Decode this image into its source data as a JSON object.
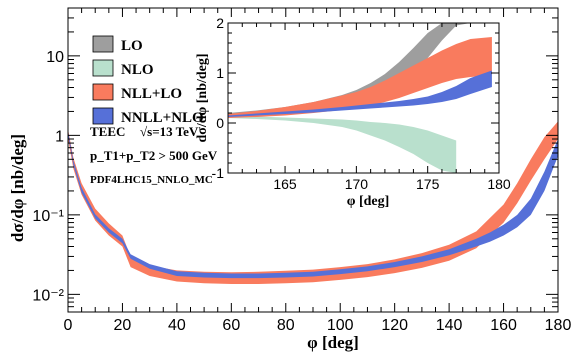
{
  "colors": {
    "lo": "#9e9e9e",
    "nlo": "#b9e0cd",
    "nll_lo": "#f97b5e",
    "nnll_nlo": "#5670d8"
  },
  "legend": [
    {
      "key": "lo",
      "label": "LO"
    },
    {
      "key": "nlo",
      "label": "NLO"
    },
    {
      "key": "nll_lo",
      "label": "NLL+LO"
    },
    {
      "key": "nnll_nlo",
      "label": "NNLL+NLO"
    }
  ],
  "annotations": {
    "line1_a": "TEEC",
    "line1_b": "√s=13 TeV",
    "line2": "p_T1+p_T2 > 500 GeV",
    "line3": "PDF4LHC15_NNLO_MC"
  },
  "chart_data": [
    {
      "type": "area",
      "name": "main",
      "xlabel": "φ [deg]",
      "ylabel": "dσ/dφ  [nb/deg]",
      "xlim": [
        0,
        180
      ],
      "ylim": [
        0.006,
        40
      ],
      "yscale": "log",
      "xticks": [
        0,
        20,
        40,
        60,
        80,
        100,
        120,
        140,
        160,
        180
      ],
      "yticks": [
        {
          "value": 0.01,
          "label": "10⁻²"
        },
        {
          "value": 0.1,
          "label": "10⁻¹"
        },
        {
          "value": 1,
          "label": "1"
        },
        {
          "value": 10,
          "label": "10"
        }
      ],
      "series": [
        {
          "key": "nll_lo",
          "x": [
            0,
            2,
            5,
            10,
            15,
            20,
            23,
            30,
            40,
            50,
            60,
            70,
            80,
            90,
            100,
            110,
            120,
            130,
            140,
            150,
            160,
            165,
            170,
            175,
            180
          ],
          "lower": [
            0.9,
            0.38,
            0.18,
            0.085,
            0.055,
            0.04,
            0.022,
            0.017,
            0.0145,
            0.0138,
            0.0135,
            0.0135,
            0.0138,
            0.0142,
            0.0152,
            0.0165,
            0.0185,
            0.0215,
            0.0265,
            0.038,
            0.08,
            0.14,
            0.27,
            0.5,
            0.9
          ],
          "upper": [
            1.2,
            0.52,
            0.25,
            0.12,
            0.078,
            0.055,
            0.03,
            0.023,
            0.02,
            0.0192,
            0.019,
            0.0192,
            0.0198,
            0.0205,
            0.022,
            0.024,
            0.0275,
            0.033,
            0.042,
            0.062,
            0.135,
            0.25,
            0.5,
            0.95,
            1.5
          ]
        },
        {
          "key": "nnll_nlo",
          "x": [
            0,
            2,
            5,
            10,
            15,
            20,
            23,
            30,
            40,
            50,
            60,
            70,
            80,
            90,
            100,
            110,
            120,
            130,
            140,
            150,
            155,
            160,
            165,
            170,
            175,
            180
          ],
          "lower": [
            1.0,
            0.42,
            0.19,
            0.09,
            0.06,
            0.044,
            0.028,
            0.021,
            0.017,
            0.0163,
            0.016,
            0.016,
            0.0163,
            0.0168,
            0.018,
            0.0195,
            0.022,
            0.0255,
            0.031,
            0.04,
            0.046,
            0.055,
            0.07,
            0.1,
            0.2,
            0.55
          ],
          "upper": [
            1.15,
            0.48,
            0.22,
            0.102,
            0.068,
            0.05,
            0.032,
            0.024,
            0.0195,
            0.0187,
            0.0183,
            0.0183,
            0.0187,
            0.0193,
            0.0207,
            0.0225,
            0.0255,
            0.03,
            0.037,
            0.05,
            0.06,
            0.075,
            0.1,
            0.16,
            0.35,
            0.9
          ]
        }
      ]
    },
    {
      "type": "area",
      "name": "inset",
      "xlabel": "φ [deg]",
      "ylabel": "dσ/dφ  [nb/deg]",
      "xlim": [
        161,
        180
      ],
      "ylim": [
        -1,
        2
      ],
      "xticks": [
        165,
        170,
        175,
        180
      ],
      "yticks": [
        -1,
        0,
        1,
        2
      ],
      "series": [
        {
          "key": "nlo",
          "x": [
            161,
            163,
            165,
            167,
            169,
            170,
            171,
            172,
            173,
            174,
            175,
            176,
            177
          ],
          "lower": [
            0.1,
            0.08,
            0.05,
            0.0,
            -0.08,
            -0.15,
            -0.25,
            -0.35,
            -0.48,
            -0.62,
            -0.8,
            -0.95,
            -1.0
          ],
          "upper": [
            0.15,
            0.13,
            0.11,
            0.09,
            0.07,
            0.05,
            0.02,
            0.0,
            -0.03,
            -0.08,
            -0.15,
            -0.25,
            -0.35
          ]
        },
        {
          "key": "lo",
          "x": [
            161,
            163,
            165,
            167,
            169,
            170,
            171,
            172,
            173,
            174,
            175,
            176,
            177,
            178
          ],
          "lower": [
            0.15,
            0.18,
            0.22,
            0.28,
            0.36,
            0.42,
            0.5,
            0.62,
            0.78,
            1.0,
            1.3,
            1.65,
            1.95,
            2.0
          ],
          "upper": [
            0.2,
            0.25,
            0.32,
            0.42,
            0.56,
            0.66,
            0.8,
            0.98,
            1.22,
            1.5,
            1.8,
            2.0,
            2.0,
            2.0
          ]
        },
        {
          "key": "nll_lo",
          "x": [
            161,
            163,
            165,
            167,
            169,
            170,
            171,
            172,
            173,
            174,
            175,
            176,
            177,
            178,
            179.5
          ],
          "lower": [
            0.1,
            0.12,
            0.15,
            0.2,
            0.26,
            0.3,
            0.35,
            0.42,
            0.5,
            0.6,
            0.7,
            0.8,
            0.88,
            0.92,
            0.95
          ],
          "upper": [
            0.18,
            0.24,
            0.32,
            0.42,
            0.55,
            0.62,
            0.72,
            0.85,
            1.0,
            1.15,
            1.3,
            1.45,
            1.58,
            1.68,
            1.72
          ]
        },
        {
          "key": "nnll_nlo",
          "x": [
            161,
            163,
            165,
            167,
            169,
            170,
            171,
            172,
            173,
            174,
            175,
            176,
            177,
            178,
            179.5
          ],
          "lower": [
            0.12,
            0.15,
            0.18,
            0.21,
            0.25,
            0.27,
            0.29,
            0.31,
            0.33,
            0.35,
            0.38,
            0.42,
            0.48,
            0.58,
            0.72
          ],
          "upper": [
            0.15,
            0.19,
            0.23,
            0.27,
            0.32,
            0.35,
            0.38,
            0.41,
            0.44,
            0.48,
            0.53,
            0.62,
            0.74,
            0.9,
            1.05
          ]
        }
      ]
    }
  ]
}
